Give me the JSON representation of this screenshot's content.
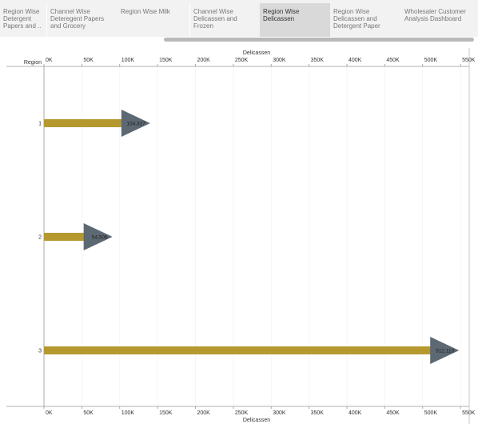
{
  "tabs": [
    {
      "label": "Region Wise\nDetergent\nPapers and ..",
      "active": false
    },
    {
      "label": "Channel Wise\nDeteregent Papers\nand Grocery",
      "active": false
    },
    {
      "label": "Region Wise Milk",
      "active": false
    },
    {
      "label": "Channel Wise\nDelicassen and\nFrozen",
      "active": false
    },
    {
      "label": "Region Wise\nDelicassen",
      "active": true
    },
    {
      "label": "Region Wise\nDelicassen and\nDetergent Paper",
      "active": false
    },
    {
      "label": "Wholesaler Customer\nAnalysis Dashboard",
      "active": false
    }
  ],
  "chart_data": {
    "type": "bar",
    "row_header": "Region",
    "xlabel": "Delicassen",
    "categories": [
      "1",
      "2",
      "3"
    ],
    "values": [
      104327,
      54506,
      512110
    ],
    "value_labels": [
      "104,327",
      "54,506",
      "512,110"
    ],
    "xlim": [
      0,
      560000
    ],
    "ticks": [
      0,
      50000,
      100000,
      150000,
      200000,
      250000,
      300000,
      350000,
      400000,
      450000,
      500000,
      550000
    ],
    "tick_labels": [
      "0K",
      "50K",
      "100K",
      "150K",
      "200K",
      "250K",
      "300K",
      "350K",
      "400K",
      "450K",
      "500K",
      "550K"
    ],
    "bar_color": "#b5992f",
    "marker_color": "#5c6872",
    "marker": "right-pointing triangle at bar end"
  }
}
